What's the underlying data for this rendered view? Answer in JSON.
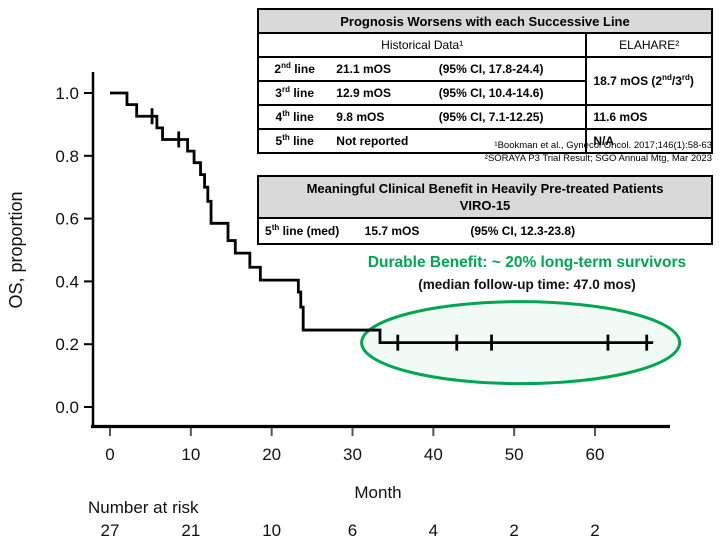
{
  "colors": {
    "accent_green": "#00a651",
    "table_title_bg": "#d9d9d9",
    "curve": "#000000"
  },
  "chart_data": {
    "type": "line",
    "subtype": "kaplan-meier-step",
    "title": "",
    "xlabel": "Month",
    "ylabel": "OS, proportion",
    "xlim": [
      0,
      69
    ],
    "ylim": [
      0.0,
      1.0
    ],
    "xticks": [
      0,
      10,
      20,
      30,
      40,
      50,
      60
    ],
    "ytick_labels": [
      "0.0",
      "0.2",
      "0.4",
      "0.6",
      "0.8",
      "1.0"
    ],
    "grid": false,
    "km_steps": [
      [
        0,
        1.0
      ],
      [
        2.1,
        0.963
      ],
      [
        3.3,
        0.926
      ],
      [
        5.8,
        0.889
      ],
      [
        6.5,
        0.852
      ],
      [
        9.6,
        0.815
      ],
      [
        10.4,
        0.778
      ],
      [
        11.2,
        0.74
      ],
      [
        11.7,
        0.7
      ],
      [
        12.1,
        0.655
      ],
      [
        12.5,
        0.585
      ],
      [
        14.6,
        0.53
      ],
      [
        15.5,
        0.49
      ],
      [
        17.3,
        0.445
      ],
      [
        18.6,
        0.404
      ],
      [
        23.3,
        0.366
      ],
      [
        23.6,
        0.318
      ],
      [
        23.9,
        0.245
      ],
      [
        33.4,
        0.205
      ]
    ],
    "curve_end_month": 67.2,
    "censor_marks": [
      [
        5.2,
        0.926
      ],
      [
        8.5,
        0.852
      ],
      [
        35.6,
        0.205
      ],
      [
        42.9,
        0.205
      ],
      [
        47.2,
        0.205
      ],
      [
        61.6,
        0.205
      ],
      [
        66.4,
        0.205
      ]
    ],
    "number_at_risk": {
      "label": "Number at risk",
      "months": [
        0,
        10,
        20,
        30,
        40,
        50,
        60
      ],
      "values": [
        27,
        21,
        10,
        6,
        4,
        2,
        2
      ]
    },
    "highlight_ellipse": {
      "center_month": 50.8,
      "center_os": 0.205,
      "color": "#00a651"
    }
  },
  "prognosis_table": {
    "title": "Prognosis Worsens with each Successive Line",
    "col_historical": "Historical Data¹",
    "col_elahare": "ELAHARE²",
    "rows": [
      {
        "ord": "2",
        "sup": "nd",
        "rest": " line",
        "mos": "21.1 mOS",
        "ci": "(95% CI, 17.8-24.4)"
      },
      {
        "ord": "3",
        "sup": "rd",
        "rest": " line",
        "mos": "12.9 mOS",
        "ci": "(95% CI, 10.4-14.6)"
      },
      {
        "ord": "4",
        "sup": "th",
        "rest": " line",
        "mos": "9.8 mOS",
        "ci": "(95% CI, 7.1-12.25)"
      },
      {
        "ord": "5",
        "sup": "th",
        "rest": " line",
        "mos": "Not reported",
        "ci": ""
      }
    ],
    "elahare_merged": {
      "pre": "18.7 mOS (2",
      "sup1": "nd",
      "mid": "/3",
      "sup2": "rd",
      "post": ")"
    },
    "elahare_4th": "11.6 mOS",
    "elahare_5th": "N/A",
    "footnote1": "¹Bookman et al., Gynecol Oncol. 2017;146(1):58-63",
    "footnote2": "²SORAYA P3 Trial Result; SGO Annual  Mtg, Mar 2023"
  },
  "viro_table": {
    "title_line1": "Meaningful Clinical Benefit in Heavily Pre-treated Patients",
    "title_line2": "VIRO-15",
    "row": {
      "ord": "5",
      "sup": "th",
      "rest": " line (med)",
      "mos": "15.7 mOS",
      "ci": "(95% CI, 12.3-23.8)"
    }
  },
  "annotations": {
    "durable_benefit": "Durable Benefit: ~ 20% long-term survivors",
    "median_followup": "(median follow-up time: 47.0 mos)"
  }
}
